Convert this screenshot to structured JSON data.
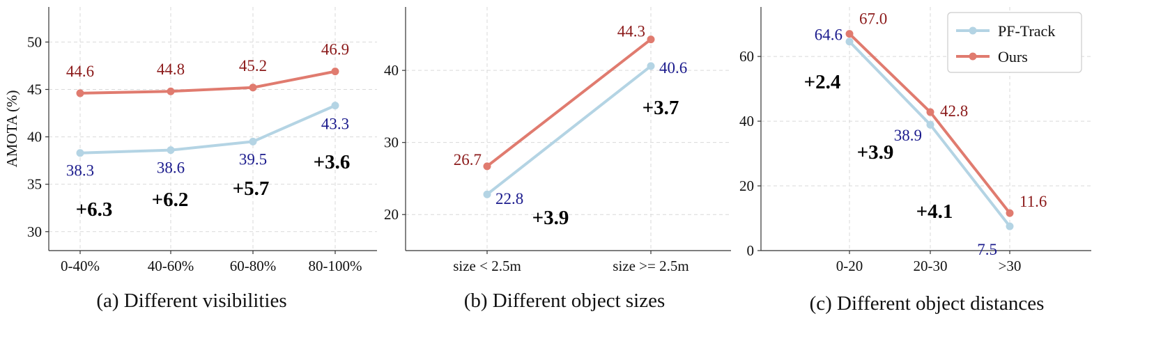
{
  "colors": {
    "pf_track": "#b4d4e4",
    "ours": "#e07b6f",
    "pf_label": "#1a1a8c",
    "ours_label": "#8b1a1a",
    "grid": "#d9d9d9",
    "axis": "#333333",
    "text": "#111111"
  },
  "legend": {
    "placement": "upper-right",
    "panel": 2,
    "items": [
      "PF-Track",
      "Ours"
    ]
  },
  "chart_data": [
    {
      "type": "line",
      "caption": "(a) Different visibilities",
      "ylabel": "AMOTA (%)",
      "categories": [
        "0-40%",
        "40-60%",
        "60-80%",
        "80-100%"
      ],
      "ylim": [
        28,
        53.7
      ],
      "yticks": [
        30,
        35,
        40,
        45,
        50
      ],
      "grid": true,
      "series": [
        {
          "name": "PF-Track",
          "key": "pf_track",
          "values": [
            38.3,
            38.6,
            39.5,
            43.3
          ],
          "labels": [
            "38.3",
            "38.6",
            "39.5",
            "43.3"
          ]
        },
        {
          "name": "Ours",
          "key": "ours",
          "values": [
            44.6,
            44.8,
            45.2,
            46.9
          ],
          "labels": [
            "44.6",
            "44.8",
            "45.2",
            "46.9"
          ]
        }
      ],
      "gains": [
        "+6.3",
        "+6.2",
        "+5.7",
        "+3.6"
      ]
    },
    {
      "type": "line",
      "caption": "(b) Different object sizes",
      "ylabel": "",
      "categories": [
        "size < 2.5m",
        "size >= 2.5m"
      ],
      "ylim": [
        15,
        48.8
      ],
      "yticks": [
        20,
        30,
        40
      ],
      "grid": true,
      "series": [
        {
          "name": "PF-Track",
          "key": "pf_track",
          "values": [
            22.8,
            40.6
          ],
          "labels": [
            "22.8",
            "40.6"
          ]
        },
        {
          "name": "Ours",
          "key": "ours",
          "values": [
            26.7,
            44.3
          ],
          "labels": [
            "26.7",
            "44.3"
          ]
        }
      ],
      "gains": [
        "+3.9",
        "+3.7"
      ]
    },
    {
      "type": "line",
      "caption": "(c) Different object distances",
      "ylabel": "",
      "categories": [
        "0-20",
        "20-30",
        ">30"
      ],
      "ylim": [
        0,
        75.3
      ],
      "yticks": [
        0,
        20,
        40,
        60
      ],
      "grid": true,
      "series": [
        {
          "name": "PF-Track",
          "key": "pf_track",
          "values": [
            64.6,
            38.9,
            7.5
          ],
          "labels": [
            "64.6",
            "38.9",
            "7.5"
          ]
        },
        {
          "name": "Ours",
          "key": "ours",
          "values": [
            67.0,
            42.8,
            11.6
          ],
          "labels": [
            "67.0",
            "42.8",
            "11.6"
          ]
        }
      ],
      "gains": [
        "+2.4",
        "+3.9",
        "+4.1"
      ]
    }
  ]
}
